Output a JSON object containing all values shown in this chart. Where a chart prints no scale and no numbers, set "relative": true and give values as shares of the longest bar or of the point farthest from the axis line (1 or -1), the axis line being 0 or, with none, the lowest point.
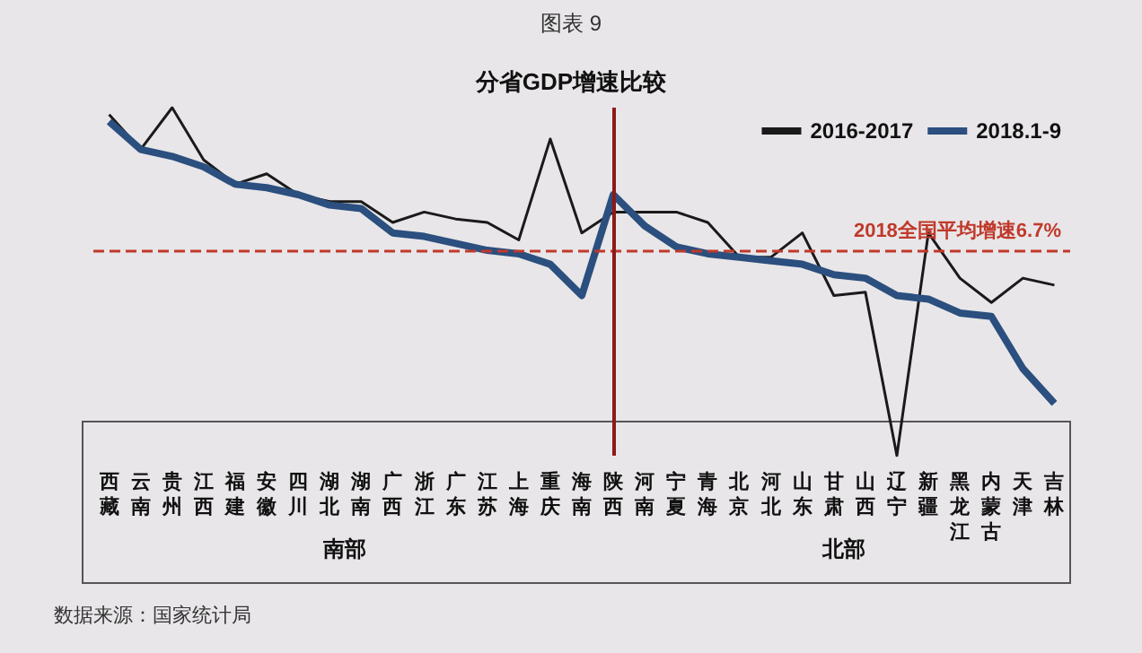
{
  "chart_data": {
    "type": "line",
    "title": "图表 9",
    "subtitle": "分省GDP增速比较",
    "relative": true,
    "categories": [
      "西藏",
      "云南",
      "贵州",
      "江西",
      "福建",
      "安徽",
      "四川",
      "湖北",
      "湖南",
      "广西",
      "浙江",
      "广东",
      "江苏",
      "上海",
      "重庆",
      "海南",
      "陕西",
      "河南",
      "宁夏",
      "青海",
      "北京",
      "河北",
      "山东",
      "甘肃",
      "山西",
      "辽宁",
      "新疆",
      "黑龙江",
      "内蒙古",
      "天津",
      "吉林"
    ],
    "series": [
      {
        "name": "2016-2017",
        "color": "#1a1a1a",
        "values": [
          0.98,
          0.88,
          1.0,
          0.85,
          0.78,
          0.81,
          0.75,
          0.73,
          0.73,
          0.67,
          0.7,
          0.68,
          0.67,
          0.62,
          0.91,
          0.64,
          0.7,
          0.7,
          0.7,
          0.67,
          0.57,
          0.57,
          0.64,
          0.46,
          0.47,
          0,
          0.64,
          0.51,
          0.44,
          0.51,
          0.49
        ]
      },
      {
        "name": "2018.1-9",
        "color": "#2b4f7e",
        "values": [
          0.96,
          0.88,
          0.86,
          0.83,
          0.78,
          0.77,
          0.75,
          0.72,
          0.71,
          0.64,
          0.63,
          0.61,
          0.59,
          0.58,
          0.55,
          0.46,
          0.75,
          0.66,
          0.6,
          0.58,
          0.57,
          0.56,
          0.55,
          0.52,
          0.51,
          0.46,
          0.45,
          0.41,
          0.4,
          0.25,
          0.15
        ]
      }
    ],
    "ref_lines": [
      {
        "axis": "y",
        "value": 0.59,
        "label": "2018全国平均增速6.7%",
        "color": "#c0392b",
        "line_style": "dashed"
      },
      {
        "axis": "x",
        "value": "陕西",
        "color": "#8b1a1a",
        "line_style": "solid"
      }
    ],
    "annotations": [
      "南部",
      "北部",
      "数据来源：国家统计局"
    ],
    "legend": "top right",
    "grid": false,
    "marker": "none"
  }
}
